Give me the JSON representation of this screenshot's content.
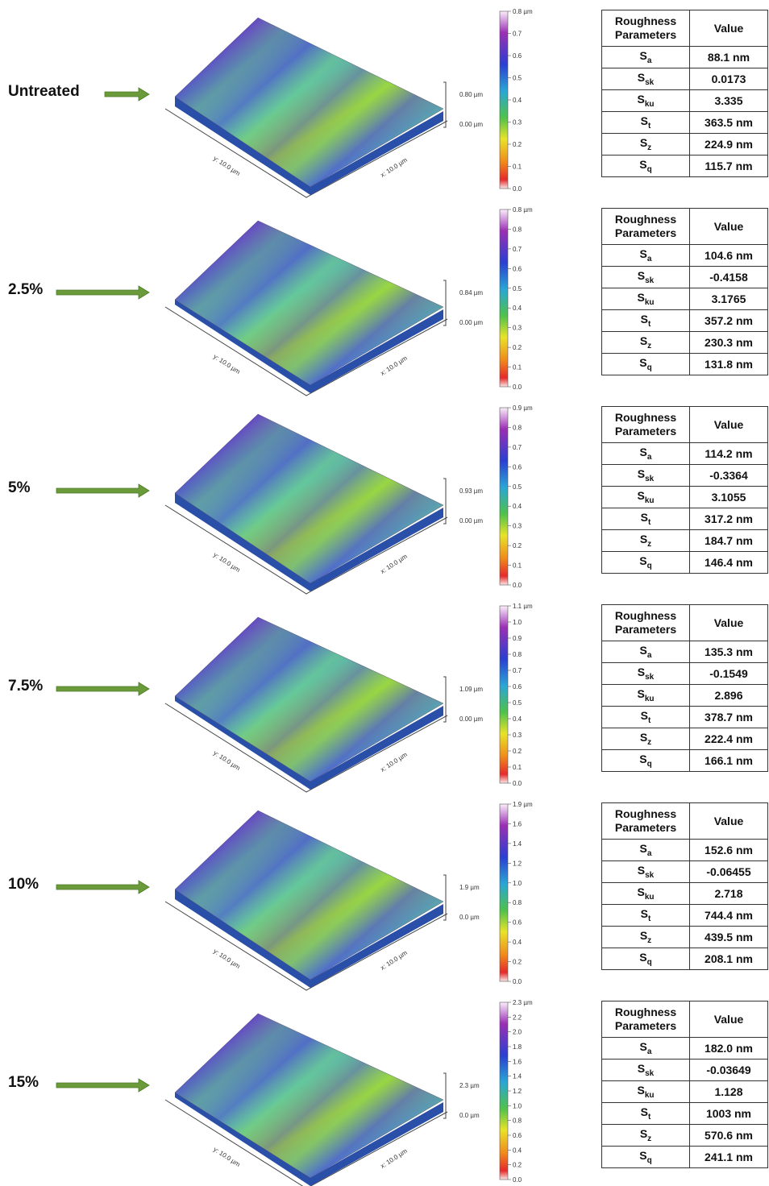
{
  "rows": [
    {
      "label": "Untreated",
      "z_max": "0.80 µm",
      "z_min": "0.00 µm",
      "y_axis": "y: 10.0 µm",
      "x_axis": "x: 10.0 µm",
      "colorbar": [
        "0.8 µm",
        "0.7",
        "0.6",
        "0.5",
        "0.4",
        "0.3",
        "0.2",
        "0.1",
        "0.0"
      ],
      "table": {
        "header": [
          "Roughness Parameters",
          "Value"
        ],
        "rows": [
          {
            "symbol": "S",
            "sub": "a",
            "value": "88.1 nm"
          },
          {
            "symbol": "S",
            "sub": "sk",
            "value": "0.0173"
          },
          {
            "symbol": "S",
            "sub": "ku",
            "value": "3.335"
          },
          {
            "symbol": "S",
            "sub": "t",
            "value": "363.5 nm"
          },
          {
            "symbol": "S",
            "sub": "z",
            "value": "224.9 nm"
          },
          {
            "symbol": "S",
            "sub": "q",
            "value": "115.7 nm"
          }
        ]
      }
    },
    {
      "label": "2.5%",
      "z_max": "0.84 µm",
      "z_min": "0.00 µm",
      "y_axis": "y: 10.0 µm",
      "x_axis": "x: 10.0 µm",
      "colorbar": [
        "0.8 µm",
        "0.8",
        "0.7",
        "0.6",
        "0.5",
        "0.4",
        "0.3",
        "0.2",
        "0.1",
        "0.0"
      ],
      "table": {
        "header": [
          "Roughness Parameters",
          "Value"
        ],
        "rows": [
          {
            "symbol": "S",
            "sub": "a",
            "value": "104.6 nm"
          },
          {
            "symbol": "S",
            "sub": "sk",
            "value": "-0.4158"
          },
          {
            "symbol": "S",
            "sub": "ku",
            "value": "3.1765"
          },
          {
            "symbol": "S",
            "sub": "t",
            "value": "357.2 nm"
          },
          {
            "symbol": "S",
            "sub": "z",
            "value": "230.3 nm"
          },
          {
            "symbol": "S",
            "sub": "q",
            "value": "131.8 nm"
          }
        ]
      }
    },
    {
      "label": "5%",
      "z_max": "0.93 µm",
      "z_min": "0.00 µm",
      "y_axis": "y: 10.0 µm",
      "x_axis": "x: 10.0 µm",
      "colorbar": [
        "0.9 µm",
        "0.8",
        "0.7",
        "0.6",
        "0.5",
        "0.4",
        "0.3",
        "0.2",
        "0.1",
        "0.0"
      ],
      "table": {
        "header": [
          "Roughness Parameters",
          "Value"
        ],
        "rows": [
          {
            "symbol": "S",
            "sub": "a",
            "value": "114.2 nm"
          },
          {
            "symbol": "S",
            "sub": "sk",
            "value": "-0.3364"
          },
          {
            "symbol": "S",
            "sub": "ku",
            "value": "3.1055"
          },
          {
            "symbol": "S",
            "sub": "t",
            "value": "317.2 nm"
          },
          {
            "symbol": "S",
            "sub": "z",
            "value": "184.7 nm"
          },
          {
            "symbol": "S",
            "sub": "q",
            "value": "146.4 nm"
          }
        ]
      }
    },
    {
      "label": "7.5%",
      "z_max": "1.09 µm",
      "z_min": "0.00 µm",
      "y_axis": "y: 10.0 µm",
      "x_axis": "x: 10.0 µm",
      "colorbar": [
        "1.1 µm",
        "1.0",
        "0.9",
        "0.8",
        "0.7",
        "0.6",
        "0.5",
        "0.4",
        "0.3",
        "0.2",
        "0.1",
        "0.0"
      ],
      "table": {
        "header": [
          "Roughness Parameters",
          "Value"
        ],
        "rows": [
          {
            "symbol": "S",
            "sub": "a",
            "value": "135.3 nm"
          },
          {
            "symbol": "S",
            "sub": "sk",
            "value": "-0.1549"
          },
          {
            "symbol": "S",
            "sub": "ku",
            "value": "2.896"
          },
          {
            "symbol": "S",
            "sub": "t",
            "value": "378.7 nm"
          },
          {
            "symbol": "S",
            "sub": "z",
            "value": "222.4 nm"
          },
          {
            "symbol": "S",
            "sub": "q",
            "value": "166.1 nm"
          }
        ]
      }
    },
    {
      "label": "10%",
      "z_max": "1.9 µm",
      "z_min": "0.0 µm",
      "y_axis": "y: 10.0 µm",
      "x_axis": "x: 10.0 µm",
      "colorbar": [
        "1.9 µm",
        "1.6",
        "1.4",
        "1.2",
        "1.0",
        "0.8",
        "0.6",
        "0.4",
        "0.2",
        "0.0"
      ],
      "table": {
        "header": [
          "Roughness Parameters",
          "Value"
        ],
        "rows": [
          {
            "symbol": "S",
            "sub": "a",
            "value": "152.6 nm"
          },
          {
            "symbol": "S",
            "sub": "sk",
            "value": "-0.06455"
          },
          {
            "symbol": "S",
            "sub": "ku",
            "value": "2.718"
          },
          {
            "symbol": "S",
            "sub": "t",
            "value": "744.4 nm"
          },
          {
            "symbol": "S",
            "sub": "z",
            "value": "439.5 nm"
          },
          {
            "symbol": "S",
            "sub": "q",
            "value": "208.1 nm"
          }
        ]
      }
    },
    {
      "label": "15%",
      "z_max": "2.3 µm",
      "z_min": "0.0 µm",
      "y_axis": "y: 10.0 µm",
      "x_axis": "x: 10.0 µm",
      "colorbar": [
        "2.3 µm",
        "2.2",
        "2.0",
        "1.8",
        "1.6",
        "1.4",
        "1.2",
        "1.0",
        "0.8",
        "0.6",
        "0.4",
        "0.2",
        "0.0"
      ],
      "table": {
        "header": [
          "Roughness Parameters",
          "Value"
        ],
        "rows": [
          {
            "symbol": "S",
            "sub": "a",
            "value": "182.0 nm"
          },
          {
            "symbol": "S",
            "sub": "sk",
            "value": "-0.03649"
          },
          {
            "symbol": "S",
            "sub": "ku",
            "value": "1.128"
          },
          {
            "symbol": "S",
            "sub": "t",
            "value": "1003 nm"
          },
          {
            "symbol": "S",
            "sub": "z",
            "value": "570.6 nm"
          },
          {
            "symbol": "S",
            "sub": "q",
            "value": "241.1 nm"
          }
        ]
      }
    }
  ]
}
